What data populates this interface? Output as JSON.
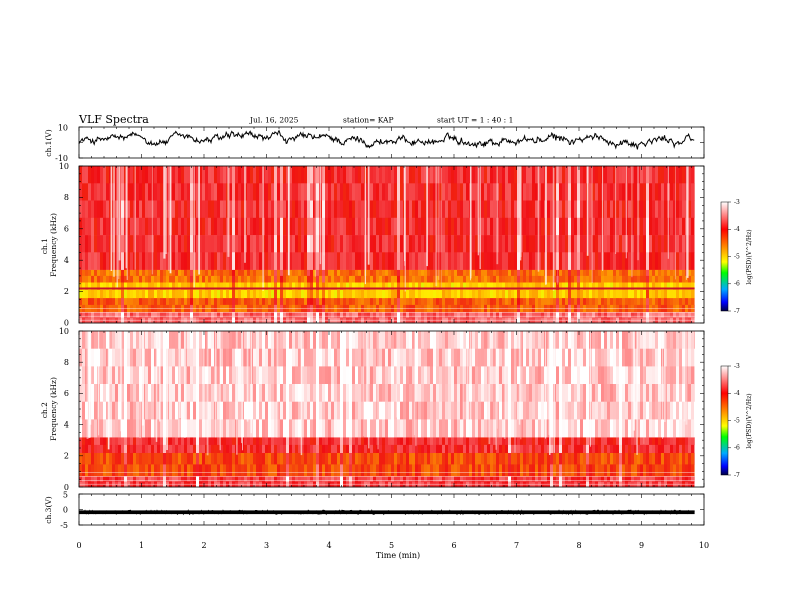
{
  "header": {
    "title": "VLF Spectra",
    "date": "Jul. 16, 2025",
    "station": "station= KAP",
    "start": "start UT =  1 : 40 : 1"
  },
  "chart_data": [
    {
      "type": "line",
      "name": "ch1-waveform",
      "ylabel": "ch.1(V)",
      "ylim": [
        -10,
        10
      ],
      "ytick_labels": [
        "10",
        "-10"
      ],
      "x_range_min": [
        0,
        9.85
      ],
      "series": [
        {
          "name": "ch.1",
          "color": "#000000",
          "amplitude_range": [
            -4,
            7
          ]
        }
      ]
    },
    {
      "type": "heatmap",
      "name": "ch1-spectrogram",
      "ylabel": "ch.1\nFrequency (kHz)",
      "ylim": [
        0,
        10
      ],
      "ytick_labels": [
        "0",
        "2",
        "4",
        "6",
        "8",
        "10"
      ],
      "x_range_min": [
        0,
        9.85
      ],
      "bands_khz": [
        {
          "from": 0.0,
          "to": 0.7,
          "level": -3.6
        },
        {
          "from": 0.7,
          "to": 1.6,
          "level": -4.4
        },
        {
          "from": 1.6,
          "to": 2.6,
          "level": -5.0
        },
        {
          "from": 2.6,
          "to": 3.4,
          "level": -4.5
        },
        {
          "from": 3.4,
          "to": 10.0,
          "level": -3.9
        }
      ],
      "line_khz": 2.2,
      "colorbar": {
        "label": "log(PSD)(V^2/Hz)",
        "range": [
          -7,
          -3
        ],
        "ticks": [
          "-3",
          "-4",
          "-5",
          "-6",
          "-7"
        ]
      }
    },
    {
      "type": "heatmap",
      "name": "ch2-spectrogram",
      "ylabel": "ch.2\nFrequency (kHz)",
      "ylim": [
        0,
        10
      ],
      "ytick_labels": [
        "0",
        "2",
        "4",
        "6",
        "8",
        "10"
      ],
      "x_range_min": [
        0,
        9.85
      ],
      "bands_khz": [
        {
          "from": 0.0,
          "to": 0.7,
          "level": -3.8
        },
        {
          "from": 0.7,
          "to": 2.2,
          "level": -4.3
        },
        {
          "from": 2.2,
          "to": 3.2,
          "level": -3.9
        },
        {
          "from": 3.2,
          "to": 10.0,
          "level": -3.2
        }
      ],
      "colorbar": {
        "label": "log(PSD)(V^2/Hz)",
        "range": [
          -7,
          -3
        ],
        "ticks": [
          "-3",
          "-4",
          "-5",
          "-6",
          "-7"
        ]
      }
    },
    {
      "type": "line",
      "name": "ch3-waveform",
      "ylabel": "ch.3(V)",
      "ylim": [
        -5,
        5
      ],
      "ytick_labels": [
        "5",
        "0",
        "-5"
      ],
      "x_range_min": [
        0,
        9.85
      ],
      "series": [
        {
          "name": "ch.3",
          "color": "#000000",
          "level": -0.9,
          "amplitude": 0.6
        }
      ]
    }
  ],
  "xaxis": {
    "label": "Time (min)",
    "range": [
      0,
      10
    ],
    "tick_labels": [
      "0",
      "1",
      "2",
      "3",
      "4",
      "5",
      "6",
      "7",
      "8",
      "9",
      "10"
    ]
  },
  "colors": {
    "spectro_bg": "#f10e13",
    "colormap": [
      "#ffffff",
      "#ff0000",
      "#ff0000",
      "#ffff00",
      "#00ff00",
      "#0000ff",
      "#000033"
    ]
  }
}
